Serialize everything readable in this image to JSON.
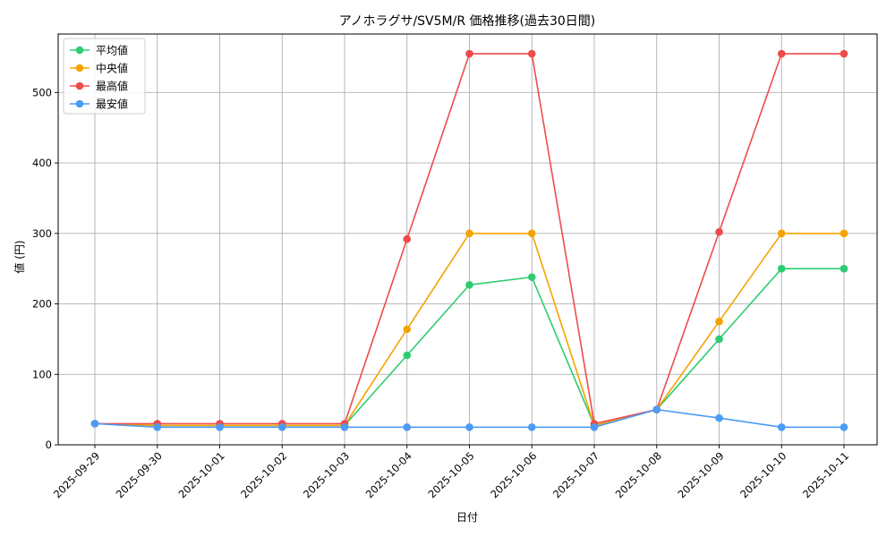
{
  "chart_data": {
    "type": "line",
    "title": "アノホラグサ/SV5M/R 価格推移(過去30日間)",
    "xlabel": "日付",
    "ylabel": "値 (円)",
    "categories": [
      "2025-09-29",
      "2025-09-30",
      "2025-10-01",
      "2025-10-02",
      "2025-10-03",
      "2025-10-04",
      "2025-10-05",
      "2025-10-06",
      "2025-10-07",
      "2025-10-08",
      "2025-10-09",
      "2025-10-10",
      "2025-10-11"
    ],
    "yticks": [
      0,
      100,
      200,
      300,
      400,
      500
    ],
    "ylim": [
      0,
      583
    ],
    "grid": true,
    "legend_position": "top-left",
    "series": [
      {
        "name": "平均値",
        "color": "#2ecc71",
        "values": [
          30,
          27.5,
          27.5,
          27.5,
          27.5,
          127,
          227,
          238,
          27.5,
          50,
          150,
          250,
          250
        ]
      },
      {
        "name": "中央値",
        "color": "#f5a300",
        "values": [
          30,
          27.5,
          27.5,
          27.5,
          27.5,
          164,
          300,
          300,
          27.5,
          50,
          175,
          300,
          300
        ]
      },
      {
        "name": "最高値",
        "color": "#ef4b4b",
        "values": [
          30,
          30,
          30,
          30,
          30,
          292,
          555,
          555,
          30,
          50,
          302,
          555,
          555
        ]
      },
      {
        "name": "最安値",
        "color": "#4b9bf5",
        "values": [
          30,
          25,
          25,
          25,
          25,
          25,
          25,
          25,
          25,
          50,
          38,
          25,
          25
        ]
      }
    ]
  }
}
